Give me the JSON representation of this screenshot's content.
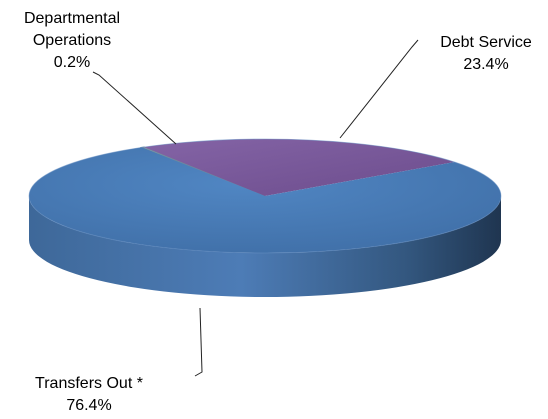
{
  "chart_data": {
    "type": "pie",
    "title": "",
    "slices": [
      {
        "label_lines": [
          "Debt Service"
        ],
        "value_label": "23.4%",
        "value": 23.4,
        "color": "#7a5a9a"
      },
      {
        "label_lines": [
          "Transfers Out *"
        ],
        "value_label": "76.4%",
        "value": 76.4,
        "color": "#4a7ab5"
      },
      {
        "label_lines": [
          "Departmental",
          "Operations"
        ],
        "value_label": "0.2%",
        "value": 0.2,
        "color": "#8aa6b8"
      }
    ],
    "style": "3d",
    "legend": "none"
  }
}
